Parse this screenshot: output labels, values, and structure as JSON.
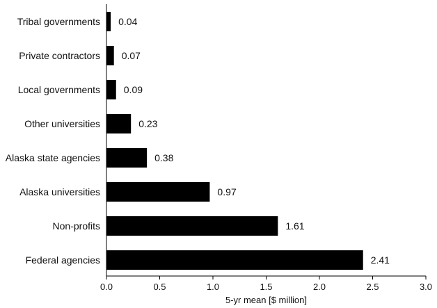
{
  "chart_data": {
    "type": "bar",
    "orientation": "horizontal",
    "categories": [
      "Tribal governments",
      "Private contractors",
      "Local governments",
      "Other universities",
      "Alaska state agencies",
      "Alaska universities",
      "Non-profits",
      "Federal agencies"
    ],
    "values": [
      0.04,
      0.07,
      0.09,
      0.23,
      0.38,
      0.97,
      1.61,
      2.41
    ],
    "value_labels": [
      "0.04",
      "0.07",
      "0.09",
      "0.23",
      "0.38",
      "0.97",
      "1.61",
      "2.41"
    ],
    "xlabel": "5-yr mean [$ million]",
    "ylabel": "",
    "xlim": [
      0,
      3.0
    ],
    "xticks": [
      "0.0",
      "0.5",
      "1.0",
      "1.5",
      "2.0",
      "2.5",
      "3.0"
    ],
    "grid": false,
    "legend": "none",
    "bar_color": "#000000"
  }
}
